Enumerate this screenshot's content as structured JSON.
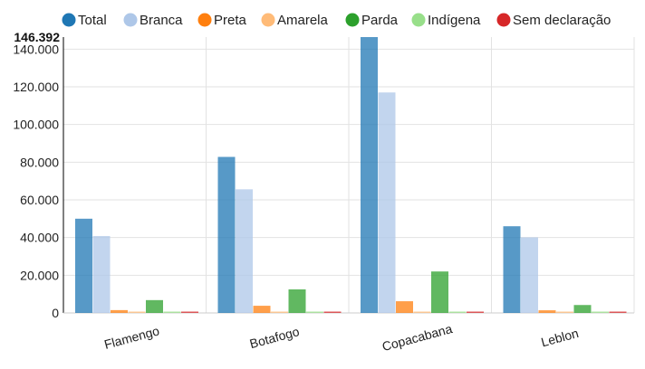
{
  "chart_data": {
    "type": "bar",
    "categories": [
      "Flamengo",
      "Botafogo",
      "Copacabana",
      "Leblon"
    ],
    "series": [
      {
        "name": "Total",
        "color": "#1f77b4",
        "values": [
          50000,
          82800,
          146392,
          46000
        ]
      },
      {
        "name": "Branca",
        "color": "#aec7e8",
        "values": [
          40800,
          65600,
          117000,
          40100
        ]
      },
      {
        "name": "Preta",
        "color": "#ff7f0e",
        "values": [
          1500,
          3800,
          6200,
          1400
        ]
      },
      {
        "name": "Amarela",
        "color": "#ffbb78",
        "values": [
          100,
          200,
          500,
          100
        ]
      },
      {
        "name": "Parda",
        "color": "#2ca02c",
        "values": [
          6800,
          12500,
          22000,
          4200
        ]
      },
      {
        "name": "Indígena",
        "color": "#98df8a",
        "values": [
          50,
          80,
          100,
          40
        ]
      },
      {
        "name": "Sem declaração",
        "color": "#d62728",
        "values": [
          250,
          400,
          500,
          200
        ]
      }
    ],
    "y_ticks": [
      "0",
      "20.000",
      "40.000",
      "60.000",
      "80.000",
      "100.000",
      "120.000",
      "140.000"
    ],
    "y_tick_values": [
      0,
      20000,
      40000,
      60000,
      80000,
      100000,
      120000,
      140000
    ],
    "y_max_label": "146.392",
    "ylim": [
      0,
      146392
    ],
    "legend_position": "top",
    "grid": true
  }
}
